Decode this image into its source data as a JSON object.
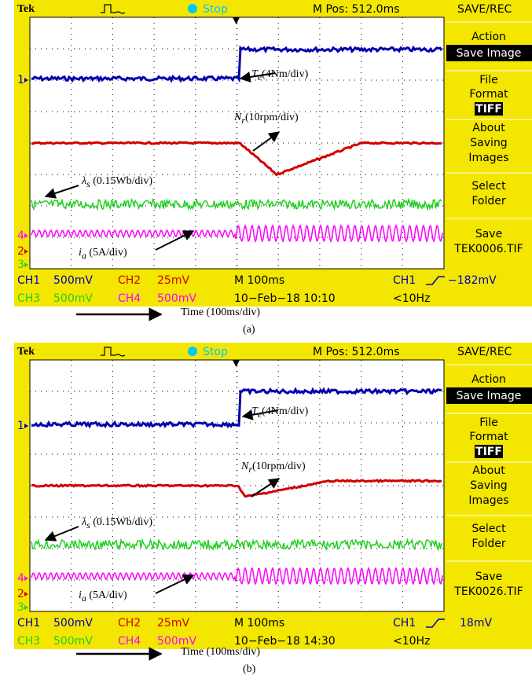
{
  "panels": [
    {
      "header": {
        "brand": "Tek",
        "status": "Stop",
        "position": "M Pos: 512.0ms"
      },
      "menu": {
        "title": "SAVE/REC",
        "action": "Action",
        "action_value": "Save Image",
        "file": "File",
        "format": "Format",
        "format_value": "TIFF",
        "about": [
          "About",
          "Saving",
          "Images"
        ],
        "select": [
          "Select",
          "Folder"
        ],
        "save": "Save",
        "save_file": "TEK0006.TIF"
      },
      "channel_markers": [
        "1",
        "4",
        "2",
        "3"
      ],
      "annotations": [
        {
          "symbol": "T",
          "sub": "e",
          "text": "(4Nm/div)"
        },
        {
          "symbol": "N",
          "sub": "r",
          "text": "(10rpm/div)"
        },
        {
          "symbol": "λ",
          "sub": "s",
          "text": " (0.15Wb/div)"
        },
        {
          "symbol": "i",
          "sub": "a",
          "text": " (5A/div)"
        }
      ],
      "footer": {
        "ch1": "CH1",
        "ch1_scale": "500mV",
        "ch2": "CH2",
        "ch2_scale": "25mV",
        "timebase": "M 100ms",
        "trigger_source": "CH1",
        "trigger_level": "−182mV",
        "ch3": "CH3",
        "ch3_scale": "500mV",
        "ch4": "CH4",
        "ch4_scale": "500mV",
        "date": "10−Feb−18  10:10",
        "frequency": "<10Hz"
      },
      "time_label": "Time (100ms/div)",
      "caption": "(a)"
    },
    {
      "header": {
        "brand": "Tek",
        "status": "Stop",
        "position": "M Pos: 512.0ms"
      },
      "menu": {
        "title": "SAVE/REC",
        "action": "Action",
        "action_value": "Save Image",
        "file": "File",
        "format": "Format",
        "format_value": "TIFF",
        "about": [
          "About",
          "Saving",
          "Images"
        ],
        "select": [
          "Select",
          "Folder"
        ],
        "save": "Save",
        "save_file": "TEK0026.TIF"
      },
      "channel_markers": [
        "1",
        "4",
        "2",
        "3"
      ],
      "annotations": [
        {
          "symbol": "T",
          "sub": "e",
          "text": "(4Nm/div)"
        },
        {
          "symbol": "N",
          "sub": "r",
          "text": "(10rpm/div)"
        },
        {
          "symbol": "λ",
          "sub": "s",
          "text": " (0.15Wb/div)"
        },
        {
          "symbol": "i",
          "sub": "a",
          "text": " (5A/div)"
        }
      ],
      "footer": {
        "ch1": "CH1",
        "ch1_scale": "500mV",
        "ch2": "CH2",
        "ch2_scale": "25mV",
        "timebase": "M 100ms",
        "trigger_source": "CH1",
        "trigger_level": "18mV",
        "ch3": "CH3",
        "ch3_scale": "500mV",
        "ch4": "CH4",
        "ch4_scale": "500mV",
        "date": "10−Feb−18  14:30",
        "frequency": "<10Hz"
      },
      "time_label": "Time (100ms/div)",
      "caption": "(b)"
    }
  ]
}
